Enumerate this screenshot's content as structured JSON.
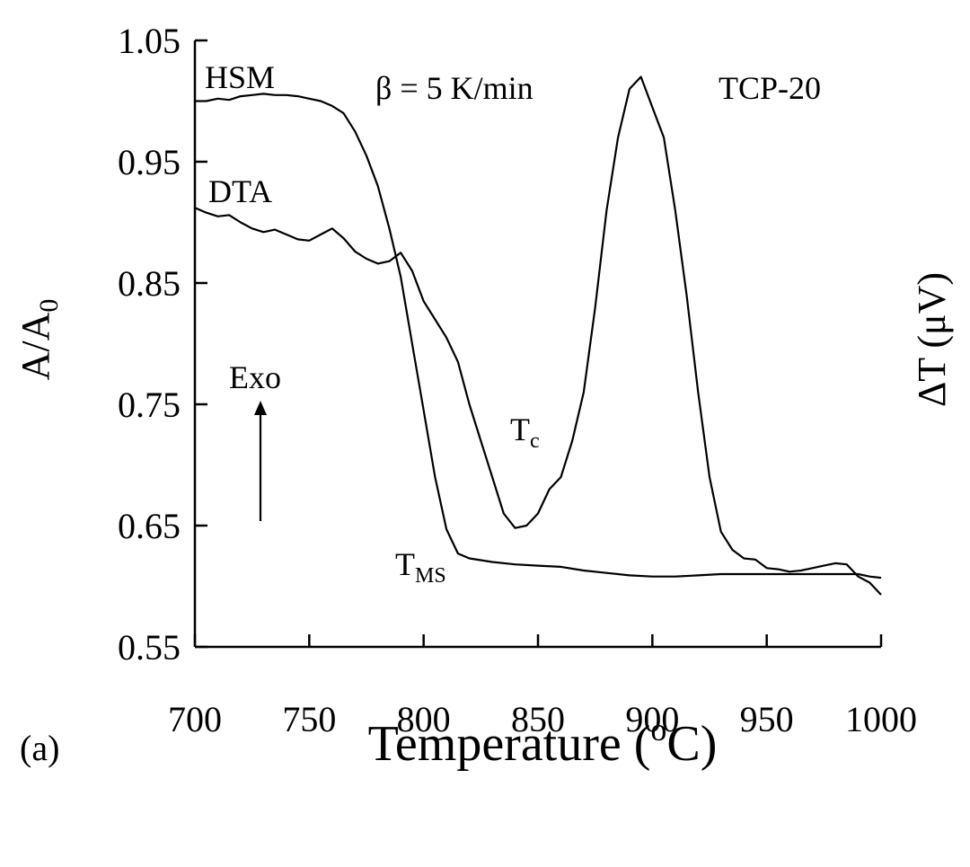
{
  "chart_data": {
    "type": "line",
    "xlabel": "Temperature (",
    "xlabel_sup": "o",
    "xlabel_tail": "C)",
    "ylabel": "A/A",
    "ylabel_sub": "0",
    "ylabel_right": "ΔT (μV)",
    "xlim": [
      700,
      1000
    ],
    "ylim": [
      0.55,
      1.05
    ],
    "x_ticks": [
      "700",
      "750",
      "800",
      "850",
      "900",
      "950",
      "1000"
    ],
    "y_ticks": [
      "0.55",
      "0.65",
      "0.75",
      "0.85",
      "0.95",
      "1.05"
    ],
    "grid": false,
    "series": [
      {
        "name": "HSM",
        "axis": "left",
        "x": [
          700,
          705,
          710,
          715,
          720,
          725,
          730,
          735,
          740,
          745,
          750,
          755,
          760,
          765,
          770,
          775,
          780,
          785,
          790,
          795,
          800,
          805,
          810,
          815,
          820,
          830,
          840,
          850,
          860,
          870,
          880,
          890,
          900,
          910,
          920,
          930,
          940,
          945,
          950,
          960,
          970,
          980,
          990,
          995,
          1000
        ],
        "y": [
          1.0,
          1.0,
          1.002,
          1.001,
          1.004,
          1.005,
          1.006,
          1.005,
          1.005,
          1.004,
          1.002,
          1.0,
          0.996,
          0.99,
          0.975,
          0.955,
          0.93,
          0.895,
          0.855,
          0.8,
          0.745,
          0.69,
          0.647,
          0.627,
          0.623,
          0.62,
          0.618,
          0.617,
          0.616,
          0.613,
          0.611,
          0.609,
          0.608,
          0.608,
          0.609,
          0.61,
          0.61,
          0.61,
          0.61,
          0.61,
          0.61,
          0.61,
          0.61,
          0.608,
          0.607
        ]
      },
      {
        "name": "DTA",
        "axis": "right",
        "x": [
          700,
          705,
          710,
          715,
          720,
          725,
          730,
          735,
          740,
          745,
          750,
          755,
          760,
          765,
          770,
          775,
          780,
          785,
          790,
          795,
          800,
          805,
          810,
          815,
          820,
          825,
          830,
          835,
          840,
          845,
          850,
          855,
          860,
          865,
          870,
          875,
          880,
          885,
          890,
          895,
          900,
          905,
          910,
          915,
          920,
          925,
          930,
          935,
          940,
          945,
          950,
          955,
          960,
          965,
          970,
          975,
          980,
          985,
          990,
          995,
          1000
        ],
        "y": [
          0.912,
          0.908,
          0.905,
          0.906,
          0.9,
          0.895,
          0.892,
          0.894,
          0.89,
          0.886,
          0.885,
          0.89,
          0.895,
          0.887,
          0.876,
          0.87,
          0.866,
          0.868,
          0.875,
          0.86,
          0.835,
          0.82,
          0.805,
          0.785,
          0.75,
          0.72,
          0.69,
          0.66,
          0.648,
          0.65,
          0.66,
          0.68,
          0.69,
          0.72,
          0.76,
          0.83,
          0.91,
          0.97,
          1.01,
          1.02,
          0.995,
          0.97,
          0.91,
          0.84,
          0.76,
          0.69,
          0.645,
          0.63,
          0.623,
          0.622,
          0.615,
          0.614,
          0.612,
          0.613,
          0.615,
          0.617,
          0.619,
          0.618,
          0.608,
          0.603,
          0.593
        ]
      }
    ],
    "annotations": {
      "hsm_label": "HSM",
      "dta_label": "DTA",
      "heating_rate": "β = 5 K/min",
      "sample": "TCP-20",
      "exo": "Exo",
      "tc_main": "T",
      "tc_sub": "c",
      "tms_main": "T",
      "tms_sub": "MS",
      "panel": "(a)"
    }
  }
}
